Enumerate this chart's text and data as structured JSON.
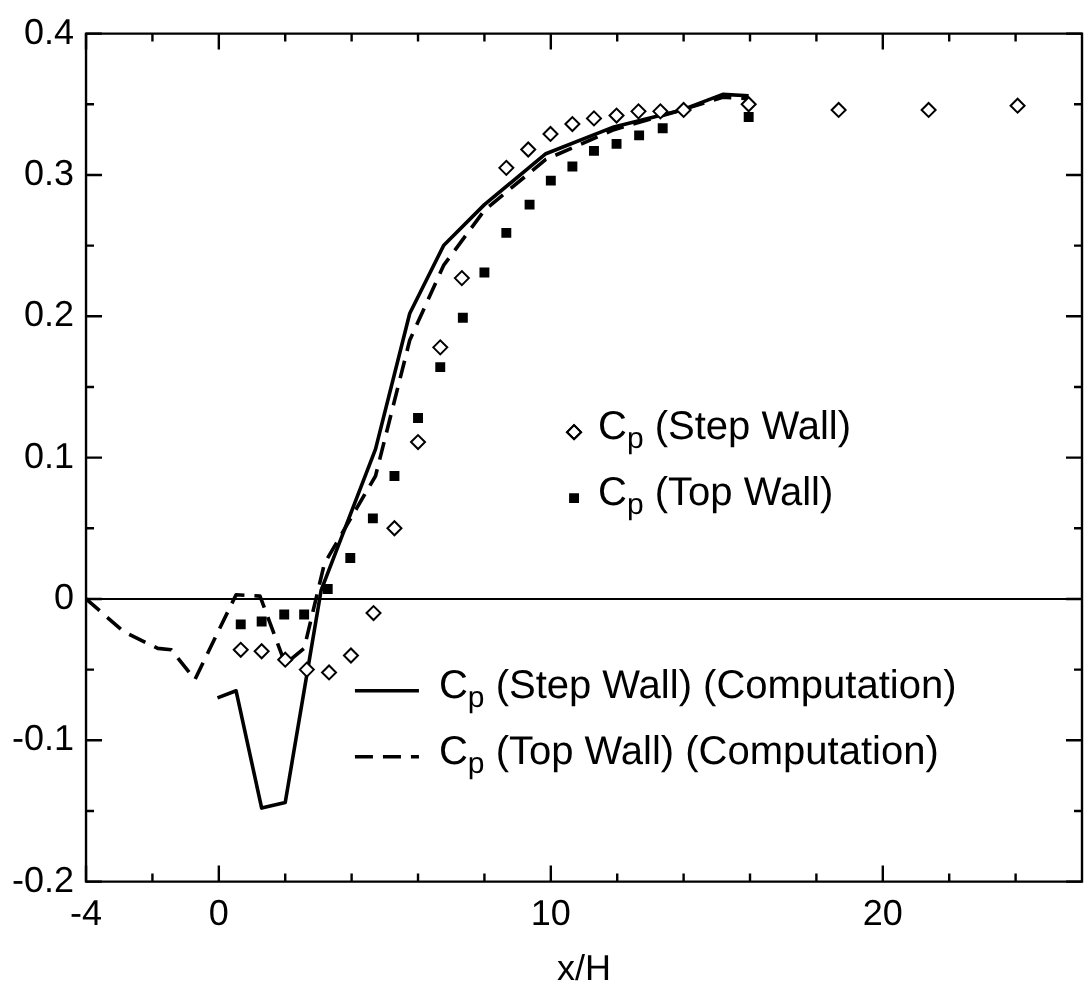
{
  "chart_data": {
    "type": "scatter",
    "xlabel": "x/H",
    "xlim": [
      -4,
      26
    ],
    "ylim": [
      -0.2,
      0.4
    ],
    "xticks": [
      -4,
      {
        "value": -2,
        "label": null
      },
      0,
      {
        "value": 2,
        "label": null
      },
      {
        "value": 4,
        "label": null
      },
      {
        "value": 6,
        "label": null
      },
      {
        "value": 8,
        "label": null
      },
      10,
      {
        "value": 12,
        "label": null
      },
      {
        "value": 14,
        "label": null
      },
      {
        "value": 16,
        "label": null
      },
      {
        "value": 18,
        "label": null
      },
      20,
      {
        "value": 22,
        "label": null
      },
      {
        "value": 24,
        "label": null
      }
    ],
    "yticks": [
      -0.2,
      {
        "value": -0.15,
        "label": null
      },
      -0.1,
      {
        "value": -0.05,
        "label": null
      },
      0,
      {
        "value": 0.05,
        "label": null
      },
      0.1,
      {
        "value": 0.15,
        "label": null
      },
      0.2,
      {
        "value": 0.25,
        "label": null
      },
      0.3,
      {
        "value": 0.35,
        "label": null
      },
      0.4
    ],
    "grid": false,
    "legend": "right",
    "ref_lines": [
      {
        "axis": "y",
        "value": 0,
        "color": "#000000"
      }
    ],
    "series": [
      {
        "name": "C$_{p}$ (Step Wall)",
        "type": "scatter",
        "marker": "diamond",
        "color": "#000000",
        "x": [
          0.66,
          1.29,
          2.0,
          2.65,
          3.32,
          3.98,
          4.66,
          5.29,
          6.0,
          6.67,
          7.32,
          8.66,
          9.32,
          9.99,
          10.65,
          11.3,
          11.98,
          12.64,
          13.3,
          14.0,
          15.96,
          18.67,
          21.38,
          24.06
        ],
        "values": [
          -0.036,
          -0.037,
          -0.043,
          -0.05,
          -0.052,
          -0.04,
          -0.01,
          0.05,
          0.111,
          0.178,
          0.227,
          0.305,
          0.318,
          0.329,
          0.336,
          0.34,
          0.342,
          0.345,
          0.345,
          0.346,
          0.35,
          0.346,
          0.346,
          0.349
        ]
      },
      {
        "name": "C$_{p}$ (Top Wall)",
        "type": "scatter",
        "marker": "square",
        "color": "#000000",
        "x": [
          0.66,
          1.29,
          1.97,
          2.57,
          3.28,
          3.96,
          4.64,
          5.29,
          6.0,
          6.67,
          7.35,
          8.0,
          8.66,
          9.36,
          10.0,
          10.65,
          11.3,
          11.98,
          12.66,
          13.37,
          15.96
        ],
        "values": [
          -0.018,
          -0.016,
          -0.011,
          -0.011,
          0.007,
          0.029,
          0.057,
          0.087,
          0.128,
          0.164,
          0.199,
          0.231,
          0.259,
          0.279,
          0.296,
          0.306,
          0.317,
          0.322,
          0.328,
          0.333,
          0.341
        ]
      },
      {
        "name": "C$_{p}$ (Step Wall) (Computation)",
        "type": "line",
        "marker": "none",
        "line_style": "solid",
        "color": "#000000",
        "x": [
          -0.04,
          0.52,
          1.29,
          2.0,
          3.08,
          4.72,
          5.75,
          6.77,
          8.0,
          9.85,
          11.9,
          13.95,
          15.18,
          15.96
        ],
        "values": [
          -0.07,
          -0.065,
          -0.148,
          -0.144,
          0.006,
          0.106,
          0.202,
          0.25,
          0.279,
          0.315,
          0.334,
          0.346,
          0.357,
          0.356
        ]
      },
      {
        "name": "C$_{p}$ (Top Wall) (Computation)",
        "type": "line",
        "marker": "none",
        "line_style": "dashed",
        "color": "#000000",
        "x": [
          -4,
          -2.87,
          -1.84,
          -1.43,
          -0.72,
          0.52,
          1.24,
          2.0,
          2.57,
          3.18,
          4.72,
          5.75,
          6.77,
          8.0,
          9.85,
          11.9,
          13.95,
          15.18,
          15.96
        ],
        "values": [
          0,
          -0.023,
          -0.035,
          -0.036,
          -0.057,
          0.003,
          0.002,
          -0.046,
          -0.035,
          0.025,
          0.087,
          0.183,
          0.236,
          0.275,
          0.311,
          0.332,
          0.346,
          0.355,
          0.354
        ]
      }
    ]
  }
}
